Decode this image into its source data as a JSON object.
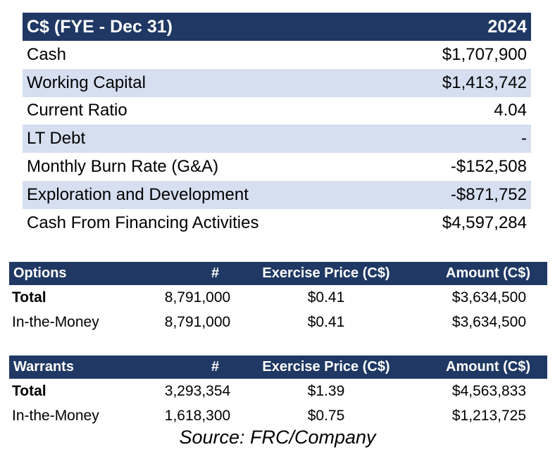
{
  "summary": {
    "header_label": "C$ (FYE - Dec 31)",
    "header_year": "2024",
    "rows": [
      {
        "label": "Cash",
        "value": "$1,707,900"
      },
      {
        "label": "Working Capital",
        "value": "$1,413,742"
      },
      {
        "label": "Current Ratio",
        "value": "4.04"
      },
      {
        "label": "LT Debt",
        "value": "-"
      },
      {
        "label": "Monthly Burn Rate (G&A)",
        "value": "-$152,508"
      },
      {
        "label": "Exploration and Development",
        "value": "-$871,752"
      },
      {
        "label": "Cash From Financing Activities",
        "value": "$4,597,284"
      }
    ]
  },
  "options": {
    "headers": [
      "Options",
      "#",
      "Exercise Price (C$)",
      "Amount (C$)"
    ],
    "rows": [
      [
        "Total",
        "8,791,000",
        "$0.41",
        "$3,634,500"
      ],
      [
        "In-the-Money",
        "8,791,000",
        "$0.41",
        "$3,634,500"
      ]
    ]
  },
  "warrants": {
    "headers": [
      "Warrants",
      "#",
      "Exercise Price (C$)",
      "Amount (C$)"
    ],
    "rows": [
      [
        "Total",
        "3,293,354",
        "$1.39",
        "$4,563,833"
      ],
      [
        "In-the-Money",
        "1,618,300",
        "$0.75",
        "$1,213,725"
      ]
    ]
  },
  "source": "Source: FRC/Company",
  "colors": {
    "header_bg": "#1f3864",
    "row_shade": "#d6dff0"
  }
}
